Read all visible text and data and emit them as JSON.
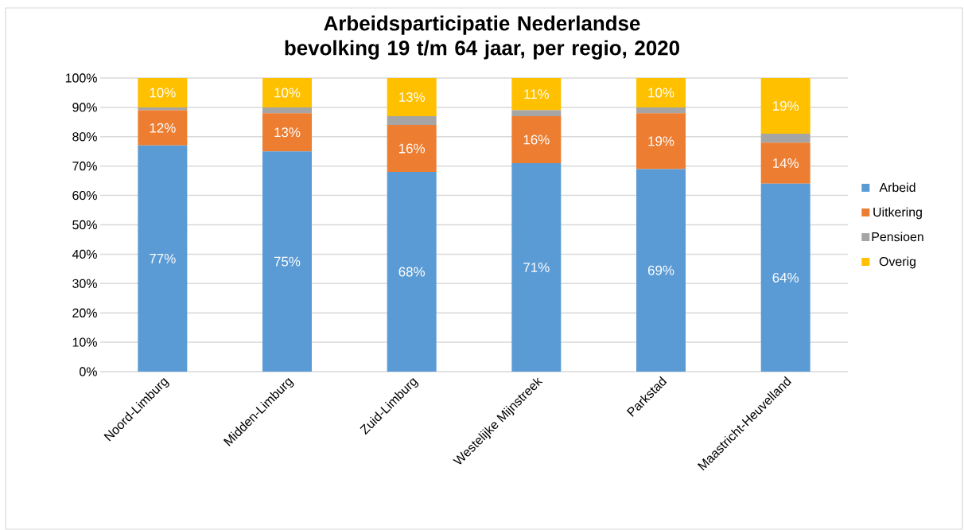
{
  "chart_data": {
    "type": "bar",
    "stacked": true,
    "title": "Arbeidsparticipatie Nederlandse bevolking 19 t/m 64 jaar, per regio, 2020",
    "categories": [
      "Noord-Limburg",
      "Midden-Limburg",
      "Zuid-Limburg",
      "Westelijke Mijnstreek",
      "Parkstad",
      "Maastricht-Heuvelland"
    ],
    "series": [
      {
        "name": "Arbeid",
        "color": "#5b9bd5",
        "values": [
          77,
          75,
          68,
          71,
          69,
          64
        ],
        "value_labels": [
          "77%",
          "75%",
          "68%",
          "71%",
          "69%",
          "64%"
        ]
      },
      {
        "name": "Uitkering",
        "color": "#ed7d31",
        "values": [
          12,
          13,
          16,
          16,
          19,
          14
        ],
        "value_labels": [
          "12%",
          "13%",
          "16%",
          "16%",
          "19%",
          "14%"
        ]
      },
      {
        "name": "Pensioen",
        "color": "#a5a5a5",
        "values": [
          1,
          2,
          3,
          2,
          2,
          3
        ]
      },
      {
        "name": "Overig",
        "color": "#ffc000",
        "values": [
          10,
          10,
          13,
          11,
          10,
          19
        ],
        "value_labels": [
          "10%",
          "10%",
          "13%",
          "11%",
          "10%",
          "19%"
        ]
      }
    ],
    "ylim": [
      0,
      100
    ],
    "yticks": [
      {
        "value": 0,
        "label": "0%"
      },
      {
        "value": 10,
        "label": "10%"
      },
      {
        "value": 20,
        "label": "20%"
      },
      {
        "value": 30,
        "label": "30%"
      },
      {
        "value": 40,
        "label": "40%"
      },
      {
        "value": 50,
        "label": "50%"
      },
      {
        "value": 60,
        "label": "60%"
      },
      {
        "value": 70,
        "label": "70%"
      },
      {
        "value": 80,
        "label": "80%"
      },
      {
        "value": 90,
        "label": "90%"
      },
      {
        "value": 100,
        "label": "100%"
      }
    ],
    "grid": "y",
    "legend": "right"
  }
}
